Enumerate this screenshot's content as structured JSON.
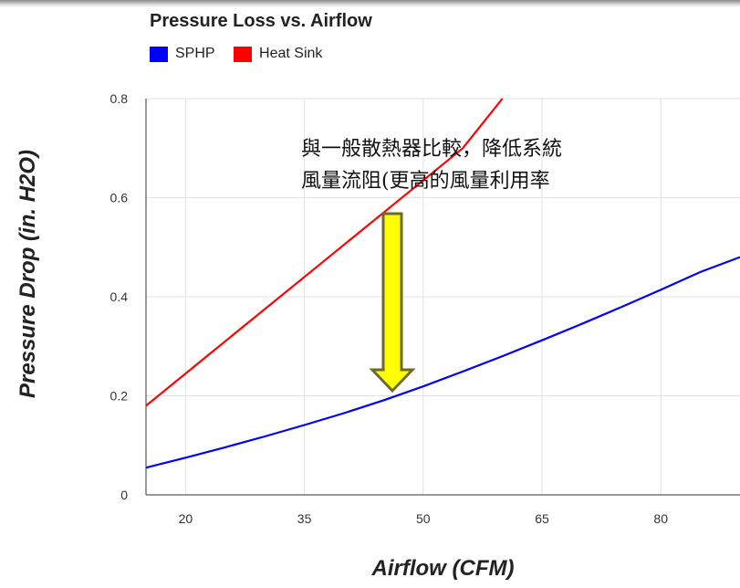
{
  "chart_data": {
    "type": "line",
    "title": "Pressure Loss vs. Airflow",
    "xlabel": "Airflow (CFM)",
    "ylabel": "Pressure Drop (in. H2O)",
    "xlim": [
      15,
      90
    ],
    "ylim": [
      0,
      0.8
    ],
    "xticks": [
      20,
      35,
      50,
      65,
      80
    ],
    "yticks": [
      0,
      0.2,
      0.4,
      0.6,
      0.8
    ],
    "xtick_labels": [
      "20",
      "35",
      "50",
      "65",
      "80"
    ],
    "ytick_labels": [
      "0",
      "0.2",
      "0.4",
      "0.6",
      "0.8"
    ],
    "grid": true,
    "legend_position": "top-left",
    "series": [
      {
        "name": "SPHP",
        "color": "#0000ff",
        "x": [
          15,
          20,
          25,
          30,
          35,
          40,
          45,
          50,
          55,
          60,
          65,
          70,
          75,
          80,
          85,
          90
        ],
        "y": [
          0.055,
          0.075,
          0.096,
          0.118,
          0.141,
          0.165,
          0.191,
          0.219,
          0.249,
          0.28,
          0.312,
          0.345,
          0.379,
          0.414,
          0.45,
          0.48
        ]
      },
      {
        "name": "Heat Sink",
        "color": "#ff0000",
        "x": [
          15,
          25,
          35,
          45,
          55,
          60
        ],
        "y": [
          0.18,
          0.31,
          0.44,
          0.57,
          0.7,
          0.8
        ]
      }
    ],
    "annotation": {
      "lines": [
        "與一般散熱器比較，降低系統",
        "風量流阻(更高的風量利用率"
      ],
      "arrow_color": "#ffff00",
      "arrow_outline": "#6b6b2a"
    }
  }
}
